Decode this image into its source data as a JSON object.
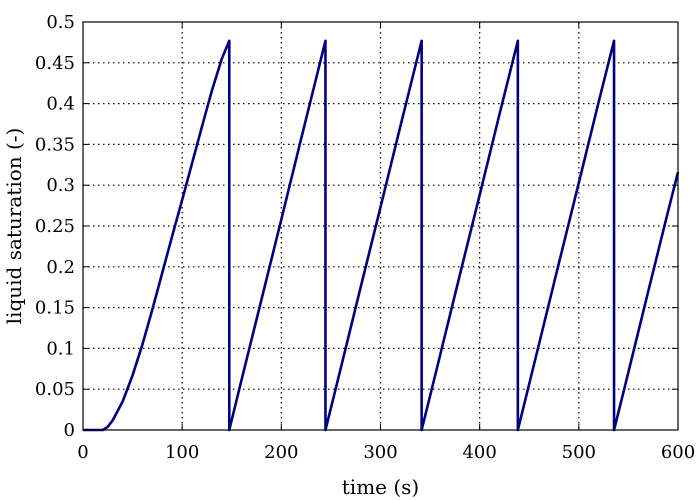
{
  "chart_data": {
    "type": "line",
    "title": "",
    "xlabel": "time (s)",
    "ylabel": "liquid saturation (-)",
    "xlim": [
      0,
      600
    ],
    "ylim": [
      0,
      0.5
    ],
    "xticks": [
      0,
      100,
      200,
      300,
      400,
      500,
      600
    ],
    "xtick_labels": [
      "0",
      "100",
      "200",
      "300",
      "400",
      "500",
      "600"
    ],
    "yticks": [
      0,
      0.05,
      0.1,
      0.15,
      0.2,
      0.25,
      0.3,
      0.35,
      0.4,
      0.45,
      0.5
    ],
    "ytick_labels": [
      "0",
      "0.05",
      "0.1",
      "0.15",
      "0.2",
      "0.25",
      "0.3",
      "0.35",
      "0.4",
      "0.45",
      "0.5"
    ],
    "grid": true,
    "series": [
      {
        "color": "#000080",
        "x": [
          0,
          20,
          25,
          30,
          40,
          50,
          60,
          70,
          80,
          90,
          100,
          110,
          120,
          130,
          140,
          147.5,
          147.5,
          160,
          180,
          200,
          220,
          244.5,
          244.5,
          260,
          280,
          300,
          320,
          341.5,
          341.5,
          360,
          380,
          400,
          420,
          438.5,
          438.5,
          460,
          480,
          500,
          520,
          535.5,
          535.5,
          550,
          570,
          590,
          600
        ],
        "y": [
          0,
          0,
          0.004,
          0.012,
          0.035,
          0.067,
          0.105,
          0.148,
          0.193,
          0.238,
          0.282,
          0.327,
          0.372,
          0.416,
          0.455,
          0.477,
          0,
          0.062,
          0.16,
          0.258,
          0.357,
          0.477,
          0,
          0.076,
          0.175,
          0.273,
          0.372,
          0.477,
          0,
          0.091,
          0.19,
          0.288,
          0.387,
          0.477,
          0,
          0.106,
          0.205,
          0.303,
          0.402,
          0.477,
          0,
          0.071,
          0.17,
          0.268,
          0.316
        ]
      }
    ]
  }
}
